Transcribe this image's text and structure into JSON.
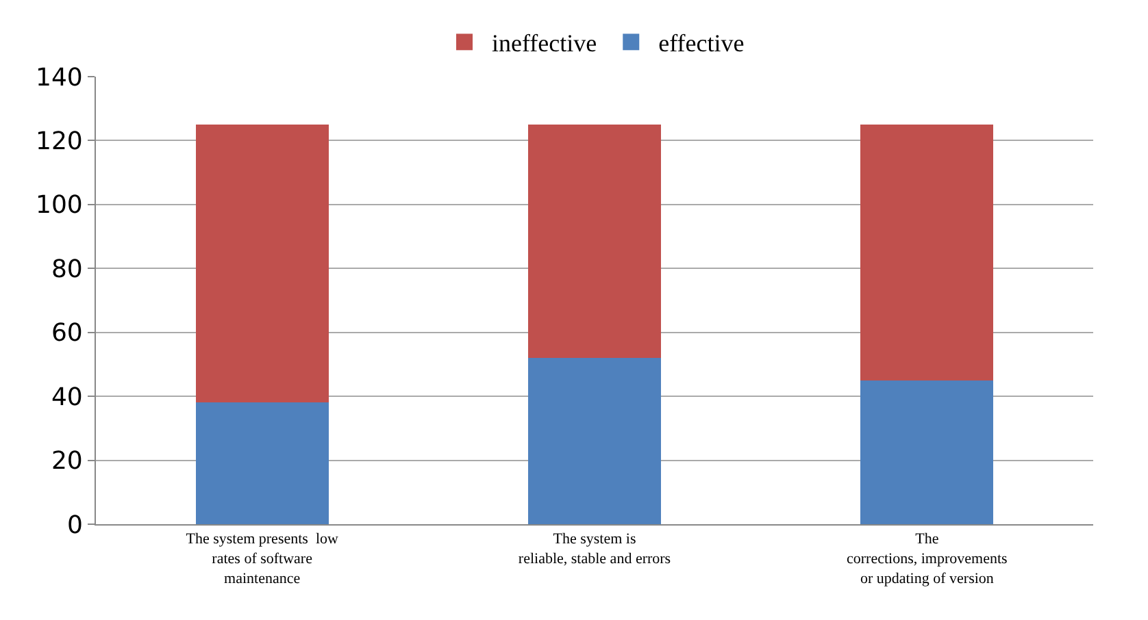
{
  "chart_data": {
    "type": "bar",
    "stacked": true,
    "categories": [
      "The system presents  low\nrates of software\nmaintenance",
      "The system is\nreliable, stable and errors",
      "The\ncorrections, improvements\nor updating of version"
    ],
    "series": [
      {
        "name": "effective",
        "color": "#4f81bd",
        "values": [
          38,
          52,
          45
        ]
      },
      {
        "name": "ineffective",
        "color": "#c0504d",
        "values": [
          87,
          73,
          80
        ]
      }
    ],
    "ylim": [
      0,
      140
    ],
    "yticks": [
      0,
      20,
      40,
      60,
      80,
      100,
      120,
      140
    ],
    "grid": "y",
    "legend": "top"
  }
}
